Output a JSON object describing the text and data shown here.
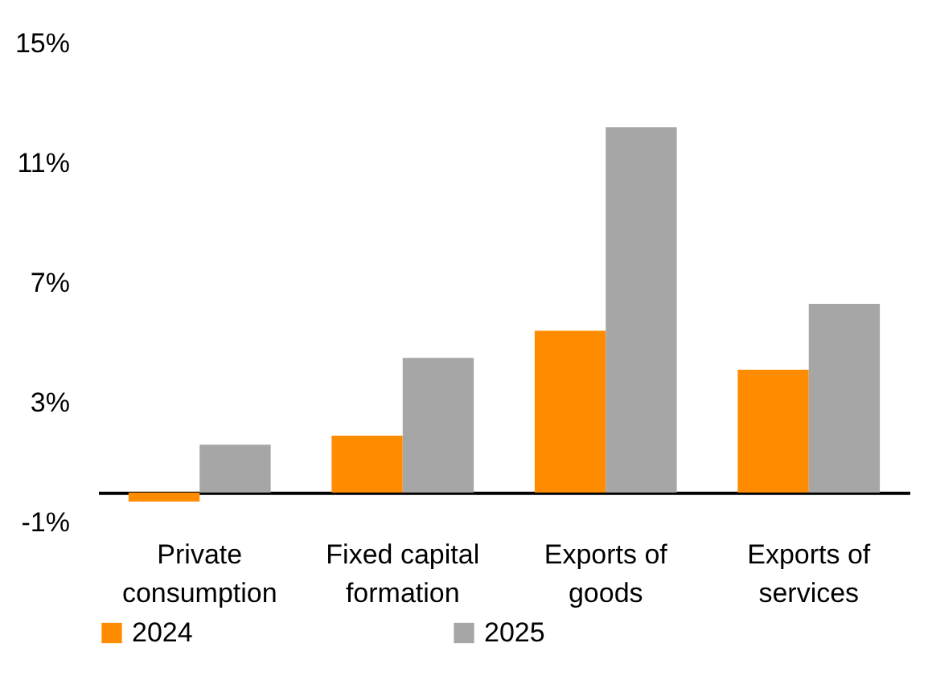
{
  "chart_data": {
    "type": "bar",
    "categories": [
      "Private consumption",
      "Fixed capital formation",
      "Exports of goods",
      "Exports of services"
    ],
    "series": [
      {
        "name": "2024",
        "color": "#ff8c00",
        "values": [
          -0.3,
          1.9,
          5.4,
          4.1
        ]
      },
      {
        "name": "2025",
        "color": "#a6a6a6",
        "values": [
          1.6,
          4.5,
          12.2,
          6.3
        ]
      }
    ],
    "ylim": [
      -1,
      15
    ],
    "yticks": [
      {
        "value": -1,
        "label": "-1%"
      },
      {
        "value": 3,
        "label": "3%"
      },
      {
        "value": 7,
        "label": "7%"
      },
      {
        "value": 11,
        "label": "11%"
      },
      {
        "value": 15,
        "label": "15%"
      }
    ],
    "grid": false,
    "legend": "bottom"
  }
}
